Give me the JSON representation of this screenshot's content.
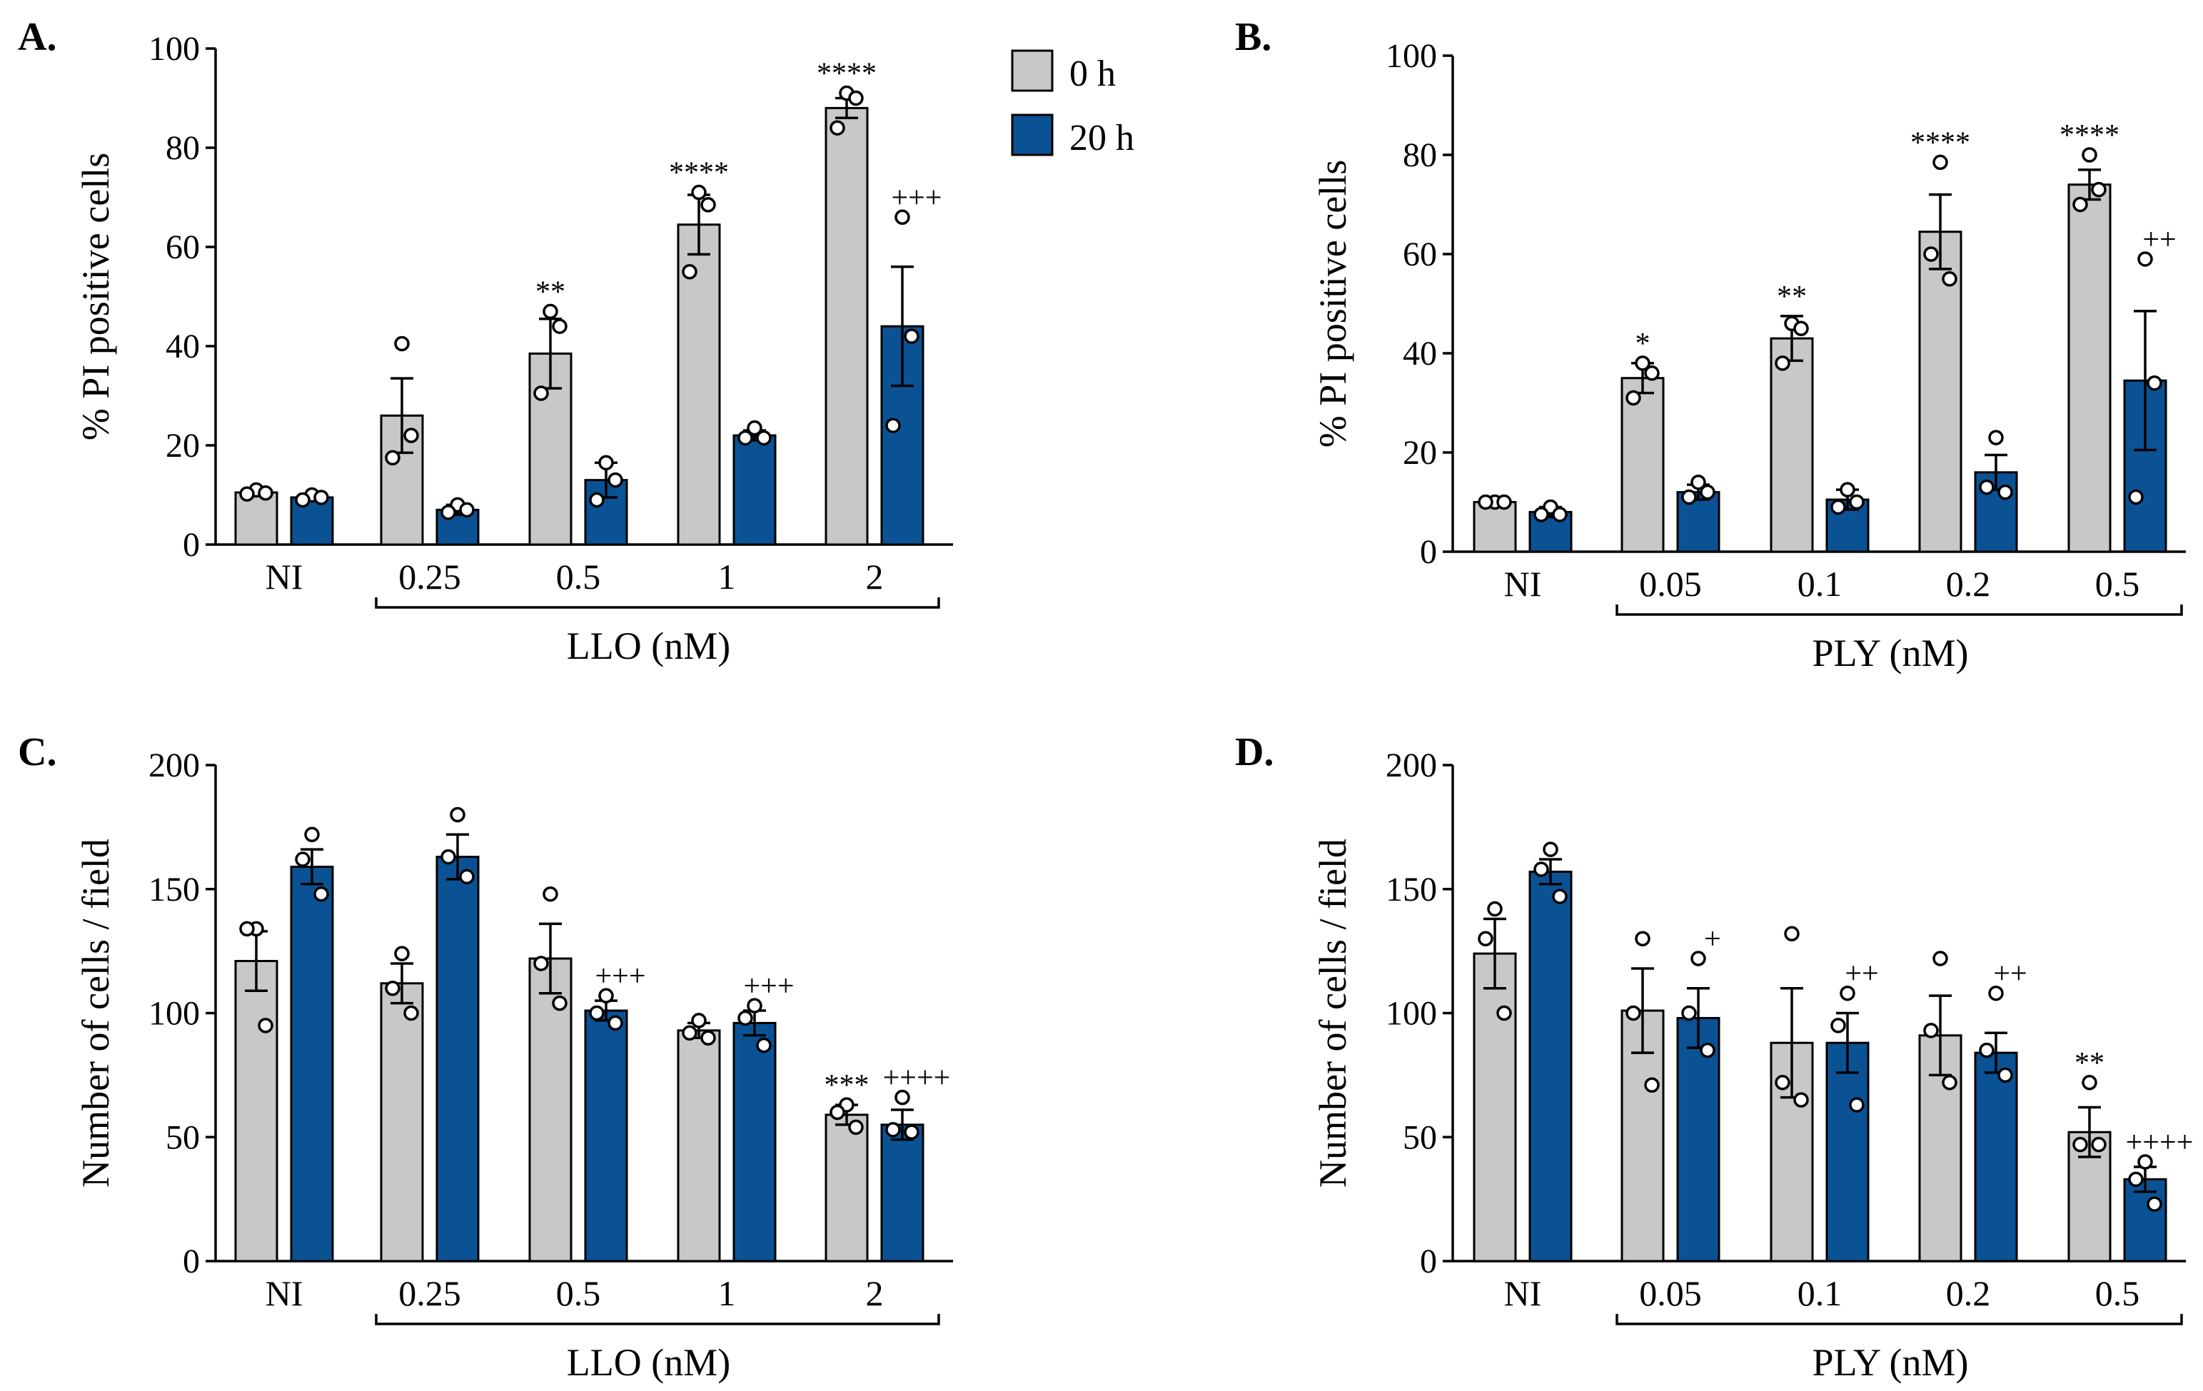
{
  "colors": {
    "h0": "#c8c8c8",
    "h20": "#0b5295",
    "axis": "#000000"
  },
  "legend": {
    "items": [
      {
        "label": "0 h",
        "color": "#c8c8c8"
      },
      {
        "label": "20 h",
        "color": "#0b5295"
      }
    ]
  },
  "chart_data": [
    {
      "id": "A",
      "panel_label": "A.",
      "type": "bar",
      "ylabel": "% PI positive cells",
      "xlabel": "LLO (nM)",
      "ylim": [
        0,
        100
      ],
      "yticks": [
        0,
        20,
        40,
        60,
        80,
        100
      ],
      "categories": [
        "NI",
        "0.25",
        "0.5",
        "1",
        "2"
      ],
      "series": [
        {
          "name": "0 h",
          "values": [
            10.5,
            26,
            38.5,
            64.5,
            88
          ],
          "err": [
            0.6,
            7.5,
            7,
            6,
            2
          ],
          "points": [
            [
              11,
              10.2,
              10.4
            ],
            [
              40.5,
              17.5,
              22
            ],
            [
              47,
              30.5,
              44
            ],
            [
              71,
              55,
              68.5
            ],
            [
              91,
              84,
              90
            ]
          ],
          "sig": [
            "",
            "",
            "**",
            "****",
            "****"
          ]
        },
        {
          "name": "20 h",
          "values": [
            9.5,
            7,
            13,
            22,
            44
          ],
          "err": [
            0.5,
            1,
            3.5,
            1,
            12
          ],
          "points": [
            [
              10,
              9,
              9.5
            ],
            [
              8,
              6.5,
              7
            ],
            [
              16.5,
              9,
              13
            ],
            [
              23.5,
              21.5,
              21.5
            ],
            [
              66,
              24,
              42
            ]
          ],
          "sig": [
            "",
            "",
            "",
            "",
            "+++"
          ]
        }
      ]
    },
    {
      "id": "B",
      "panel_label": "B.",
      "type": "bar",
      "ylabel": "% PI positive cells",
      "xlabel": "PLY (nM)",
      "ylim": [
        0,
        100
      ],
      "yticks": [
        0,
        20,
        40,
        60,
        80,
        100
      ],
      "categories": [
        "NI",
        "0.05",
        "0.1",
        "0.2",
        "0.5"
      ],
      "series": [
        {
          "name": "0 h",
          "values": [
            10,
            35,
            43,
            64.5,
            74
          ],
          "err": [
            0.5,
            3,
            4.5,
            7.5,
            3
          ],
          "points": [
            [
              10,
              10,
              10
            ],
            [
              38,
              31,
              36
            ],
            [
              46,
              38,
              45
            ],
            [
              78.5,
              60,
              55
            ],
            [
              80,
              70,
              73
            ]
          ],
          "sig": [
            "",
            "*",
            "**",
            "****",
            "****"
          ]
        },
        {
          "name": "20 h",
          "values": [
            8,
            12,
            10.5,
            16,
            34.5
          ],
          "err": [
            1,
            1.5,
            2,
            3.5,
            14
          ],
          "points": [
            [
              9,
              7.5,
              7.5
            ],
            [
              14,
              11,
              12
            ],
            [
              12.5,
              9,
              10
            ],
            [
              23,
              13,
              12
            ],
            [
              59,
              11,
              34
            ]
          ],
          "sig": [
            "",
            "",
            "",
            "",
            "++"
          ]
        }
      ]
    },
    {
      "id": "C",
      "panel_label": "C.",
      "type": "bar",
      "ylabel": "Number of cells / field",
      "xlabel": "LLO (nM)",
      "ylim": [
        0,
        200
      ],
      "yticks": [
        0,
        50,
        100,
        150,
        200
      ],
      "categories": [
        "NI",
        "0.25",
        "0.5",
        "1",
        "2"
      ],
      "series": [
        {
          "name": "0 h",
          "values": [
            121,
            112,
            122,
            93,
            59
          ],
          "err": [
            12,
            8,
            14,
            3,
            4
          ],
          "points": [
            [
              134,
              134,
              95
            ],
            [
              124,
              110,
              100
            ],
            [
              148,
              120,
              104
            ],
            [
              97,
              92,
              90
            ],
            [
              63,
              60,
              54
            ]
          ],
          "sig": [
            "",
            "",
            "",
            "",
            "***"
          ]
        },
        {
          "name": "20 h",
          "values": [
            159,
            163,
            101,
            96,
            55
          ],
          "err": [
            7,
            9,
            4,
            5,
            6
          ],
          "points": [
            [
              172,
              162,
              148
            ],
            [
              180,
              163,
              155
            ],
            [
              107,
              100,
              96
            ],
            [
              103,
              98,
              87
            ],
            [
              66,
              53,
              52
            ]
          ],
          "sig": [
            "",
            "",
            "+++",
            "+++",
            "++++"
          ]
        }
      ]
    },
    {
      "id": "D",
      "panel_label": "D.",
      "type": "bar",
      "ylabel": "Number of cells / field",
      "xlabel": "PLY (nM)",
      "ylim": [
        0,
        200
      ],
      "yticks": [
        0,
        50,
        100,
        150,
        200
      ],
      "categories": [
        "NI",
        "0.05",
        "0.1",
        "0.2",
        "0.5"
      ],
      "series": [
        {
          "name": "0 h",
          "values": [
            124,
            101,
            88,
            91,
            52
          ],
          "err": [
            14,
            17,
            22,
            16,
            10
          ],
          "points": [
            [
              142,
              130,
              100
            ],
            [
              130,
              100,
              71
            ],
            [
              132,
              72,
              65
            ],
            [
              122,
              93,
              72
            ],
            [
              72,
              47,
              47
            ]
          ],
          "sig": [
            "",
            "",
            "",
            "",
            "**"
          ]
        },
        {
          "name": "20 h",
          "values": [
            157,
            98,
            88,
            84,
            33
          ],
          "err": [
            5,
            12,
            12,
            8,
            5
          ],
          "points": [
            [
              166,
              158,
              147
            ],
            [
              122,
              100,
              85
            ],
            [
              108,
              95,
              63
            ],
            [
              108,
              85,
              75
            ],
            [
              40,
              33,
              23
            ]
          ],
          "sig": [
            "",
            "+",
            "++",
            "++",
            "++++"
          ]
        }
      ]
    }
  ]
}
